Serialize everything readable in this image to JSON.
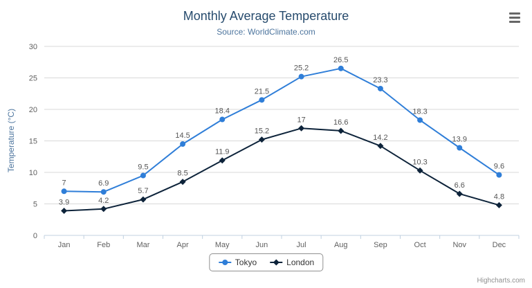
{
  "chart": {
    "credit": "Highcharts.com"
  },
  "chart_data": {
    "type": "line",
    "title": "Monthly Average Temperature",
    "subtitle": "Source: WorldClimate.com",
    "categories": [
      "Jan",
      "Feb",
      "Mar",
      "Apr",
      "May",
      "Jun",
      "Jul",
      "Aug",
      "Sep",
      "Oct",
      "Nov",
      "Dec"
    ],
    "series": [
      {
        "name": "Tokyo",
        "color": "#2f7ed8",
        "marker": "circle",
        "values": [
          7,
          6.9,
          9.5,
          14.5,
          18.4,
          21.5,
          25.2,
          26.5,
          23.3,
          18.3,
          13.9,
          9.6
        ]
      },
      {
        "name": "London",
        "color": "#0d233a",
        "marker": "diamond",
        "values": [
          3.9,
          4.2,
          5.7,
          8.5,
          11.9,
          15.2,
          17,
          16.6,
          14.2,
          10.3,
          6.6,
          4.8
        ]
      }
    ],
    "xlabel": "",
    "ylabel": "Temperature (°C)",
    "ylim": [
      0,
      30
    ],
    "yticks": [
      0,
      5,
      10,
      15,
      20,
      25,
      30
    ],
    "grid": true,
    "data_labels": true,
    "legend_position": "bottom"
  },
  "colors": {
    "title": "#274b6d",
    "subtitle": "#4d759e",
    "axis_title": "#4d759e",
    "axis_label": "#606060",
    "data_label": "#555555",
    "grid": "#d8d8d8",
    "axis_line": "#c0d0e0",
    "legend_border": "#909090",
    "legend_text": "#333333",
    "credit": "#909090",
    "menu_icon": "#666666"
  }
}
